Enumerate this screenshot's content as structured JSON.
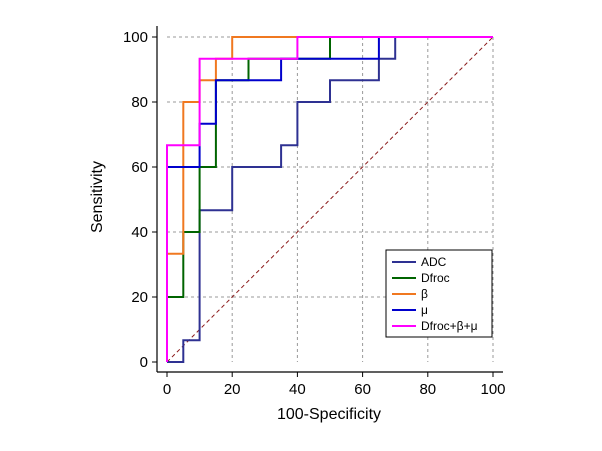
{
  "chart_data": {
    "type": "line",
    "subtype": "roc-step",
    "title": "",
    "xlabel": "100-Specificity",
    "ylabel": "Sensitivity",
    "xlim": [
      0,
      100
    ],
    "ylim": [
      0,
      100
    ],
    "xticks": [
      0,
      20,
      40,
      60,
      80,
      100
    ],
    "yticks": [
      0,
      20,
      40,
      60,
      80,
      100
    ],
    "grid": true,
    "legend_position": "bottom-right",
    "reference_line": {
      "x": [
        0,
        100
      ],
      "y": [
        0,
        100
      ],
      "style": "dashed",
      "color": "#8b1a1a"
    },
    "series": [
      {
        "name": "ADC",
        "color": "#2e3192",
        "points": [
          [
            0,
            0
          ],
          [
            5,
            0
          ],
          [
            5,
            6.7
          ],
          [
            10,
            6.7
          ],
          [
            10,
            46.7
          ],
          [
            20,
            46.7
          ],
          [
            20,
            60
          ],
          [
            35,
            60
          ],
          [
            35,
            66.7
          ],
          [
            40,
            66.7
          ],
          [
            40,
            80
          ],
          [
            50,
            80
          ],
          [
            50,
            86.7
          ],
          [
            65,
            86.7
          ],
          [
            65,
            93.3
          ],
          [
            70,
            93.3
          ],
          [
            70,
            100
          ],
          [
            100,
            100
          ]
        ]
      },
      {
        "name": "Dfroc",
        "color": "#006400",
        "points": [
          [
            0,
            0
          ],
          [
            0,
            20
          ],
          [
            5,
            20
          ],
          [
            5,
            40
          ],
          [
            10,
            40
          ],
          [
            10,
            60
          ],
          [
            15,
            60
          ],
          [
            15,
            86.7
          ],
          [
            25,
            86.7
          ],
          [
            25,
            93.3
          ],
          [
            50,
            93.3
          ],
          [
            50,
            100
          ],
          [
            100,
            100
          ]
        ]
      },
      {
        "name": "β",
        "color": "#f07820",
        "points": [
          [
            0,
            0
          ],
          [
            0,
            33.3
          ],
          [
            5,
            33.3
          ],
          [
            5,
            80
          ],
          [
            10,
            80
          ],
          [
            10,
            86.7
          ],
          [
            15,
            86.7
          ],
          [
            15,
            93.3
          ],
          [
            20,
            93.3
          ],
          [
            20,
            100
          ],
          [
            100,
            100
          ]
        ]
      },
      {
        "name": "μ",
        "color": "#0000cc",
        "points": [
          [
            0,
            0
          ],
          [
            0,
            60
          ],
          [
            10,
            60
          ],
          [
            10,
            73.3
          ],
          [
            15,
            73.3
          ],
          [
            15,
            86.7
          ],
          [
            35,
            86.7
          ],
          [
            35,
            93.3
          ],
          [
            65,
            93.3
          ],
          [
            65,
            100
          ],
          [
            100,
            100
          ]
        ]
      },
      {
        "name": "Dfroc+β+μ",
        "color": "#ff00ff",
        "points": [
          [
            0,
            0
          ],
          [
            0,
            66.7
          ],
          [
            10,
            66.7
          ],
          [
            10,
            93.3
          ],
          [
            40,
            93.3
          ],
          [
            40,
            100
          ],
          [
            100,
            100
          ]
        ]
      }
    ]
  }
}
